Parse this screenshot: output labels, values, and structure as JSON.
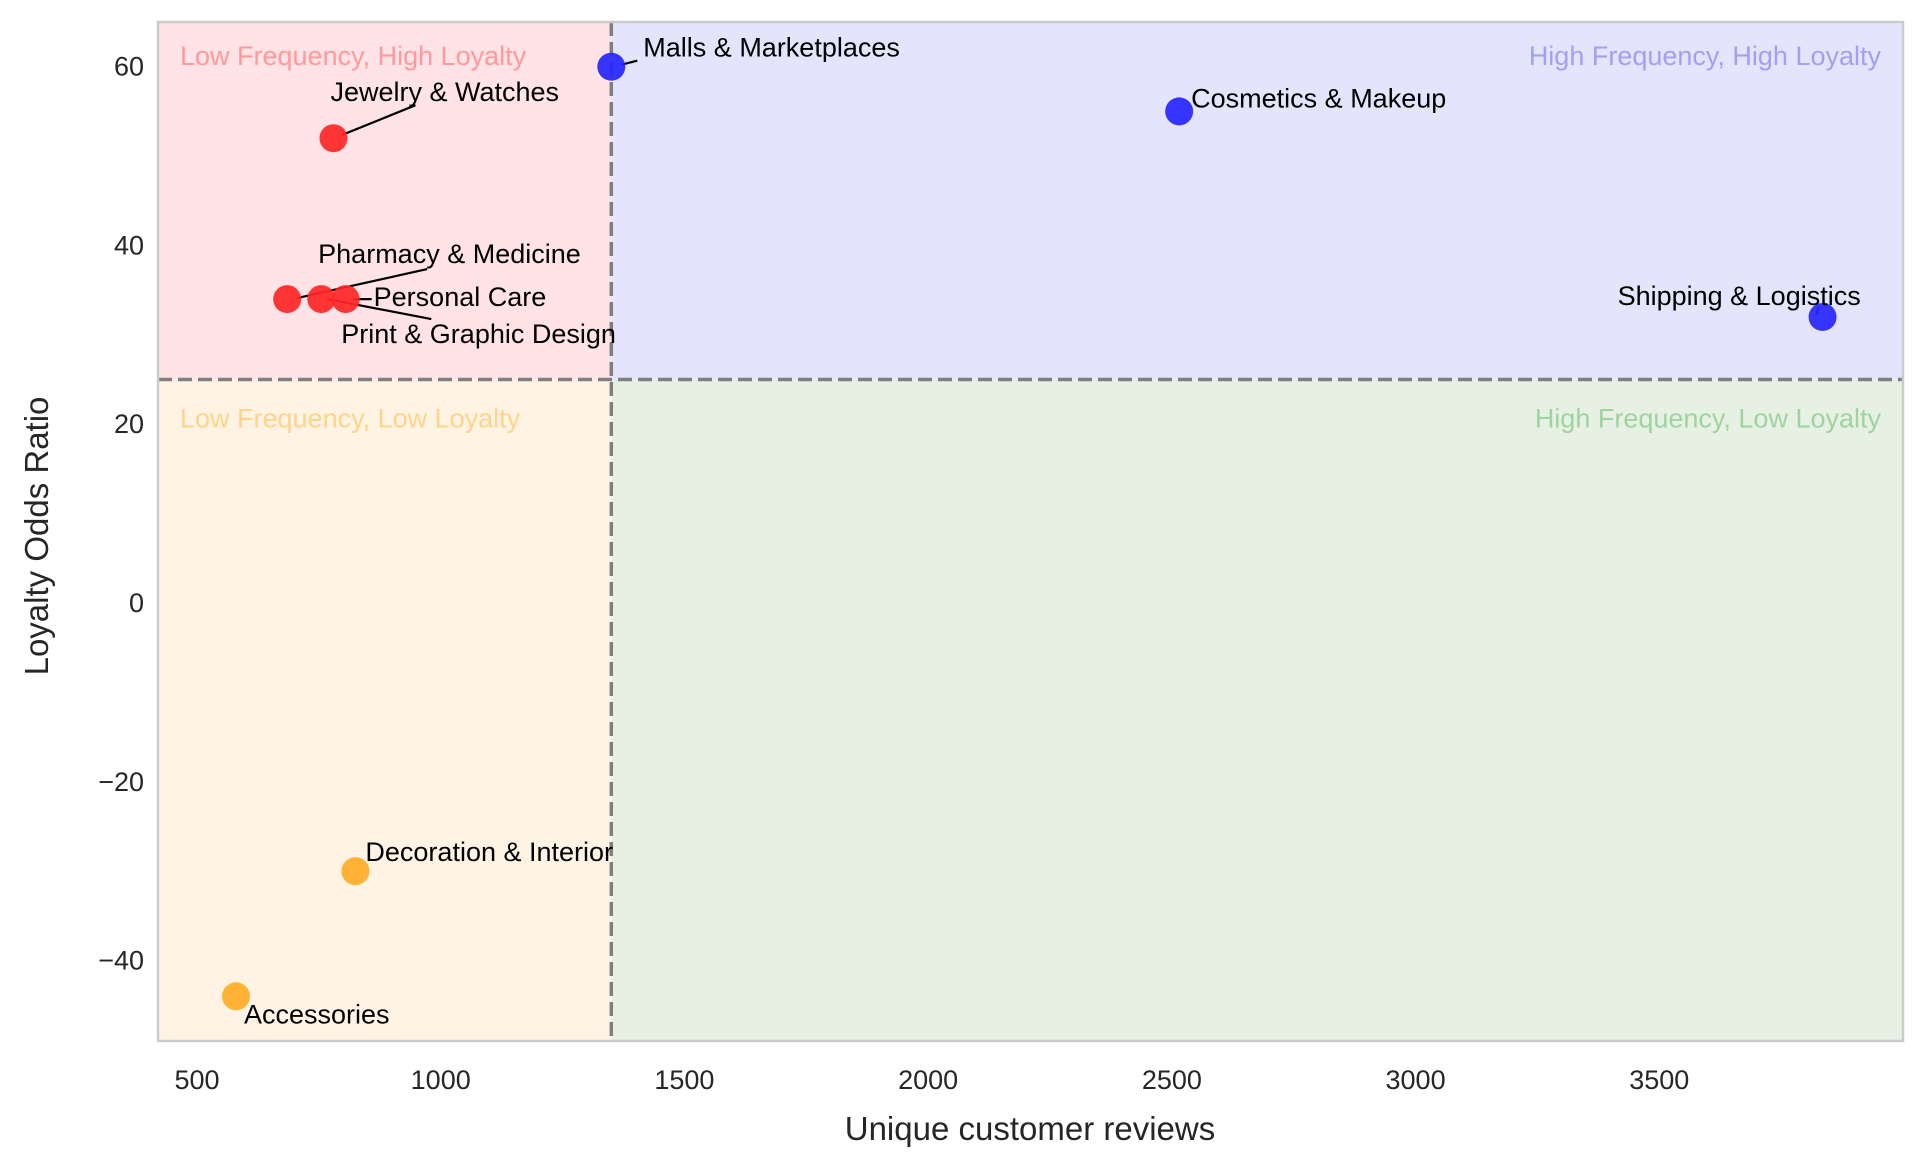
{
  "chart_data": {
    "type": "scatter",
    "xlabel": "Unique customer reviews",
    "ylabel": "Loyalty Odds Ratio",
    "xlim": [
      420,
      4000
    ],
    "ylim": [
      -49,
      65
    ],
    "xticks": [
      500,
      1000,
      1500,
      2000,
      2500,
      3000,
      3500
    ],
    "xtick_labels": [
      "500",
      "1000",
      "1500",
      "2000",
      "2500",
      "3000",
      "3500"
    ],
    "yticks": [
      60,
      40,
      20,
      0,
      -20,
      -40
    ],
    "ytick_labels": [
      "60",
      "40",
      "20",
      "0",
      "−20",
      "−40"
    ],
    "grid": false,
    "thresholds": {
      "x": 1350,
      "y": 25
    },
    "quadrants": [
      {
        "id": "low-freq-high-loyal",
        "label": "Low Frequency, High Loyalty",
        "fill": "#ffe3e6",
        "text_color": "#ff9a9a"
      },
      {
        "id": "high-freq-high-loyal",
        "label": "High Frequency, High Loyalty",
        "fill": "#e4e4fd",
        "text_color": "#a1a1f0"
      },
      {
        "id": "low-freq-low-loyal",
        "label": "Low Frequency, Low Loyalty",
        "fill": "#fff4e4",
        "text_color": "#ffd38a"
      },
      {
        "id": "high-freq-low-loyal",
        "label": "High Frequency, Low Loyalty",
        "fill": "#e6f1e4",
        "text_color": "#9fd49f"
      }
    ],
    "colors": {
      "red": "#ff2626",
      "blue": "#2626ff",
      "orange": "#ffab26"
    },
    "points": [
      {
        "label": "Malls & Marketplaces",
        "x": 1350,
        "y": 60,
        "color": "blue"
      },
      {
        "label": "Cosmetics & Makeup",
        "x": 2515,
        "y": 55,
        "color": "blue"
      },
      {
        "label": "Shipping & Logistics",
        "x": 3835,
        "y": 32,
        "color": "blue"
      },
      {
        "label": "Jewelry & Watches",
        "x": 780,
        "y": 52,
        "color": "red"
      },
      {
        "label": "Pharmacy & Medicine",
        "x": 685,
        "y": 34,
        "color": "red"
      },
      {
        "label": "Print & Graphic Design",
        "x": 755,
        "y": 34,
        "color": "red"
      },
      {
        "label": "Personal Care",
        "x": 805,
        "y": 34,
        "color": "red"
      },
      {
        "label": "Decoration & Interior",
        "x": 825,
        "y": -30,
        "color": "orange"
      },
      {
        "label": "Accessories",
        "x": 580,
        "y": -44,
        "color": "orange"
      }
    ]
  }
}
